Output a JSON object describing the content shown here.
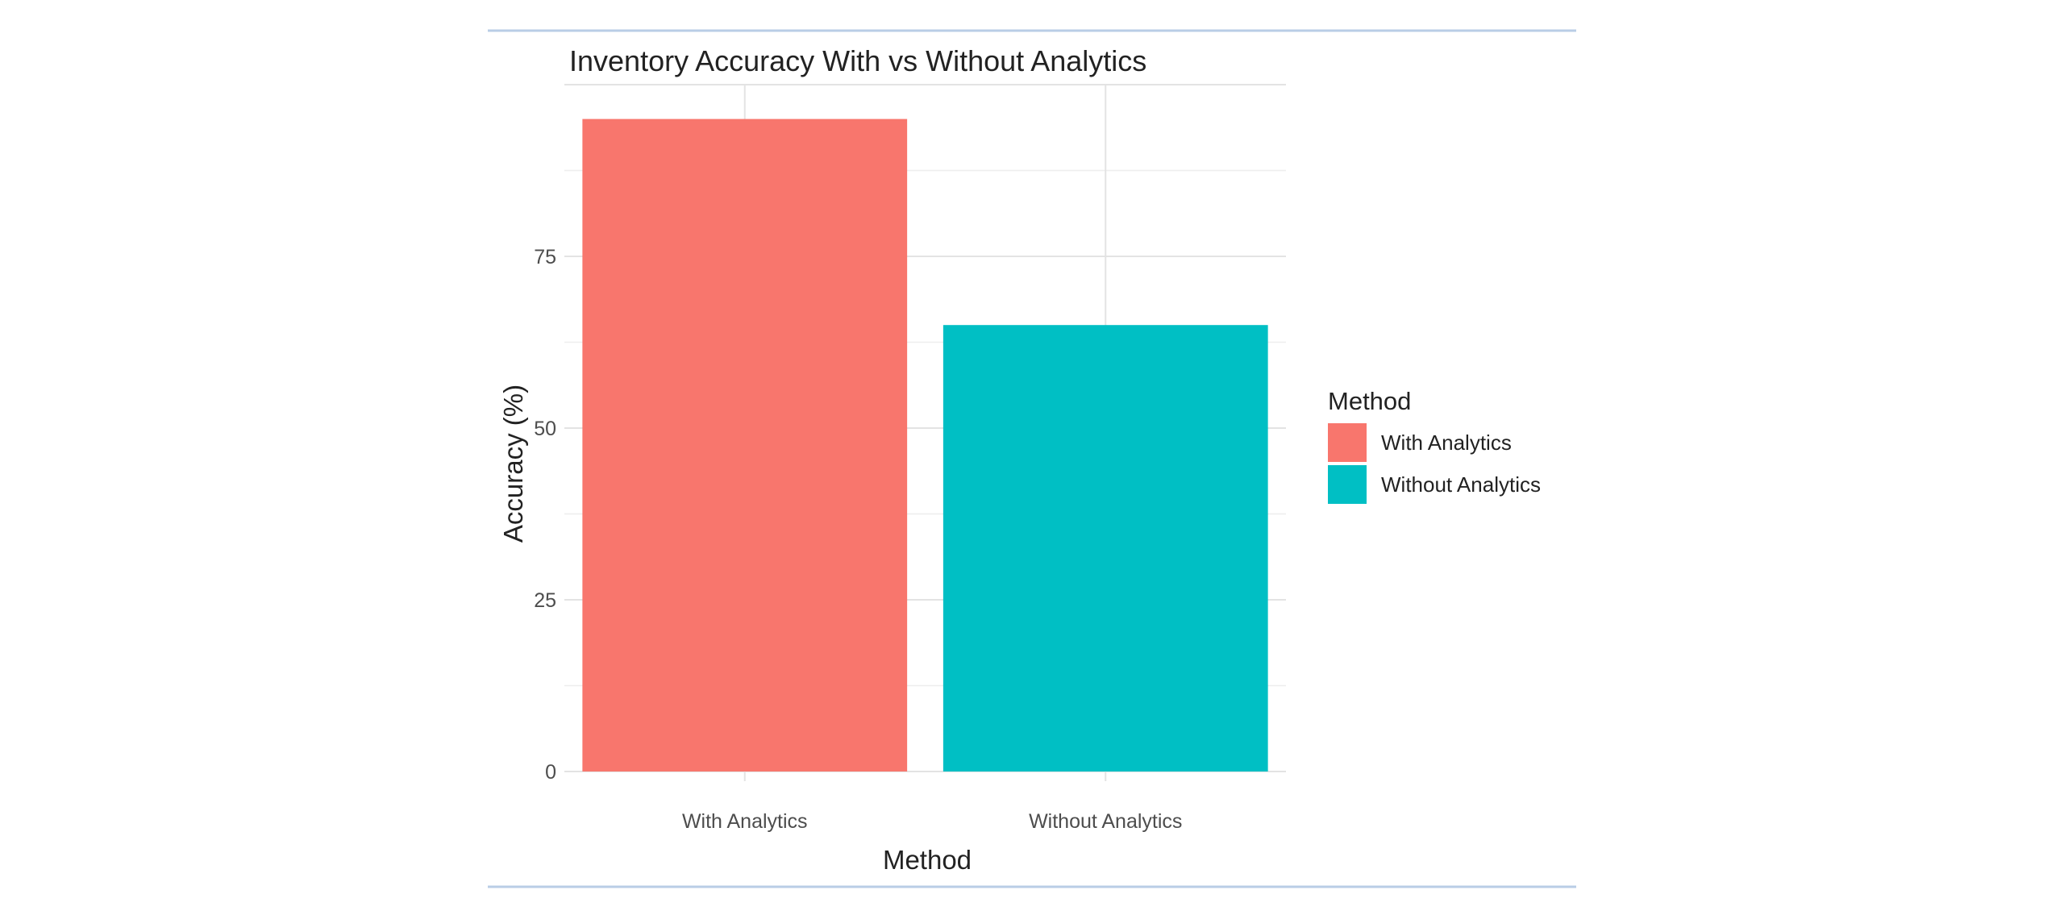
{
  "chart_data": {
    "type": "bar",
    "title": "Inventory Accuracy With vs Without Analytics",
    "xlabel": "Method",
    "ylabel": "Accuracy (%)",
    "categories": [
      "With Analytics",
      "Without Analytics"
    ],
    "values": [
      95,
      65
    ],
    "colors": [
      "#f8766d",
      "#00bfc4"
    ],
    "ylim": [
      0,
      100
    ],
    "yticks": [
      0,
      25,
      50,
      75
    ],
    "grid": true,
    "legend": {
      "title": "Method",
      "placement": "right",
      "items": [
        {
          "label": "With Analytics",
          "color": "#f8766d"
        },
        {
          "label": "Without Analytics",
          "color": "#00bfc4"
        }
      ]
    }
  }
}
